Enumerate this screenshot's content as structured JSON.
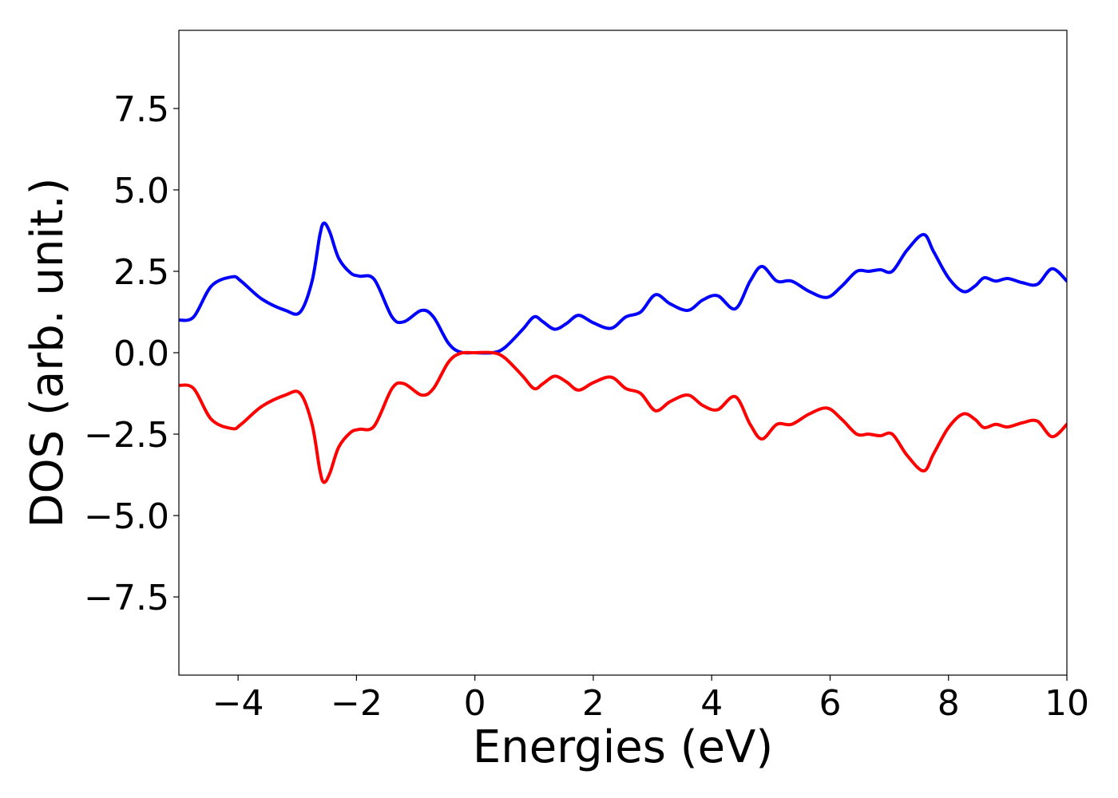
{
  "chart_data": {
    "type": "line",
    "title": "",
    "xlabel": "Energies (eV)",
    "ylabel": "DOS (arb. unit.)",
    "xlim": [
      -5,
      10
    ],
    "ylim": [
      -9.9,
      9.9
    ],
    "grid": false,
    "legend": "none",
    "x_ticks": [
      {
        "value": -4,
        "label": "−4"
      },
      {
        "value": -2,
        "label": "−2"
      },
      {
        "value": 0,
        "label": "0"
      },
      {
        "value": 2,
        "label": "2"
      },
      {
        "value": 4,
        "label": "4"
      },
      {
        "value": 6,
        "label": "6"
      },
      {
        "value": 8,
        "label": "8"
      },
      {
        "value": 10,
        "label": "10"
      }
    ],
    "y_ticks": [
      {
        "value": 7.5,
        "label": "7.5"
      },
      {
        "value": 5.0,
        "label": "5.0"
      },
      {
        "value": 2.5,
        "label": "2.5"
      },
      {
        "value": 0.0,
        "label": "0.0"
      },
      {
        "value": -2.5,
        "label": "−2.5"
      },
      {
        "value": -5.0,
        "label": "−5.0"
      },
      {
        "value": -7.5,
        "label": "−7.5"
      }
    ],
    "series": [
      {
        "color": "#0000ff",
        "points": [
          [
            -5.0,
            1.0
          ],
          [
            -4.75,
            1.1
          ],
          [
            -4.45,
            2.05
          ],
          [
            -4.1,
            2.33
          ],
          [
            -3.95,
            2.2
          ],
          [
            -3.6,
            1.65
          ],
          [
            -3.2,
            1.3
          ],
          [
            -2.95,
            1.25
          ],
          [
            -2.75,
            2.2
          ],
          [
            -2.62,
            3.6
          ],
          [
            -2.55,
            3.98
          ],
          [
            -2.45,
            3.7
          ],
          [
            -2.3,
            2.9
          ],
          [
            -2.1,
            2.45
          ],
          [
            -1.95,
            2.35
          ],
          [
            -1.7,
            2.25
          ],
          [
            -1.4,
            1.1
          ],
          [
            -1.2,
            0.95
          ],
          [
            -0.9,
            1.3
          ],
          [
            -0.7,
            1.1
          ],
          [
            -0.45,
            0.3
          ],
          [
            -0.25,
            0.02
          ],
          [
            0.0,
            0.0
          ],
          [
            0.3,
            0.0
          ],
          [
            0.5,
            0.15
          ],
          [
            0.8,
            0.7
          ],
          [
            1.0,
            1.1
          ],
          [
            1.15,
            0.95
          ],
          [
            1.35,
            0.72
          ],
          [
            1.55,
            0.9
          ],
          [
            1.75,
            1.15
          ],
          [
            2.0,
            0.92
          ],
          [
            2.3,
            0.75
          ],
          [
            2.55,
            1.1
          ],
          [
            2.8,
            1.25
          ],
          [
            3.05,
            1.78
          ],
          [
            3.3,
            1.5
          ],
          [
            3.6,
            1.3
          ],
          [
            3.85,
            1.62
          ],
          [
            4.1,
            1.75
          ],
          [
            4.4,
            1.35
          ],
          [
            4.65,
            2.2
          ],
          [
            4.85,
            2.65
          ],
          [
            5.1,
            2.2
          ],
          [
            5.35,
            2.2
          ],
          [
            5.65,
            1.88
          ],
          [
            5.95,
            1.7
          ],
          [
            6.2,
            2.05
          ],
          [
            6.45,
            2.5
          ],
          [
            6.65,
            2.5
          ],
          [
            6.85,
            2.55
          ],
          [
            7.05,
            2.5
          ],
          [
            7.3,
            3.15
          ],
          [
            7.58,
            3.63
          ],
          [
            7.75,
            3.1
          ],
          [
            8.0,
            2.3
          ],
          [
            8.25,
            1.88
          ],
          [
            8.45,
            2.05
          ],
          [
            8.6,
            2.3
          ],
          [
            8.8,
            2.2
          ],
          [
            9.0,
            2.28
          ],
          [
            9.25,
            2.15
          ],
          [
            9.5,
            2.1
          ],
          [
            9.75,
            2.58
          ],
          [
            10.0,
            2.2
          ]
        ]
      },
      {
        "color": "#ff0000",
        "points": [
          [
            -5.0,
            -1.0
          ],
          [
            -4.75,
            -1.1
          ],
          [
            -4.45,
            -2.05
          ],
          [
            -4.1,
            -2.33
          ],
          [
            -3.95,
            -2.2
          ],
          [
            -3.6,
            -1.65
          ],
          [
            -3.2,
            -1.3
          ],
          [
            -2.95,
            -1.25
          ],
          [
            -2.75,
            -2.2
          ],
          [
            -2.62,
            -3.6
          ],
          [
            -2.55,
            -3.98
          ],
          [
            -2.45,
            -3.7
          ],
          [
            -2.3,
            -2.9
          ],
          [
            -2.1,
            -2.45
          ],
          [
            -1.95,
            -2.35
          ],
          [
            -1.7,
            -2.25
          ],
          [
            -1.4,
            -1.1
          ],
          [
            -1.2,
            -0.95
          ],
          [
            -0.9,
            -1.3
          ],
          [
            -0.7,
            -1.1
          ],
          [
            -0.45,
            -0.3
          ],
          [
            -0.25,
            -0.02
          ],
          [
            0.0,
            0.0
          ],
          [
            0.3,
            0.0
          ],
          [
            0.5,
            -0.15
          ],
          [
            0.8,
            -0.7
          ],
          [
            1.0,
            -1.1
          ],
          [
            1.15,
            -0.95
          ],
          [
            1.35,
            -0.72
          ],
          [
            1.55,
            -0.9
          ],
          [
            1.75,
            -1.15
          ],
          [
            2.0,
            -0.92
          ],
          [
            2.3,
            -0.75
          ],
          [
            2.55,
            -1.1
          ],
          [
            2.8,
            -1.25
          ],
          [
            3.05,
            -1.78
          ],
          [
            3.3,
            -1.5
          ],
          [
            3.6,
            -1.3
          ],
          [
            3.85,
            -1.62
          ],
          [
            4.1,
            -1.75
          ],
          [
            4.4,
            -1.35
          ],
          [
            4.65,
            -2.2
          ],
          [
            4.85,
            -2.65
          ],
          [
            5.1,
            -2.2
          ],
          [
            5.35,
            -2.2
          ],
          [
            5.65,
            -1.88
          ],
          [
            5.95,
            -1.7
          ],
          [
            6.2,
            -2.05
          ],
          [
            6.45,
            -2.5
          ],
          [
            6.65,
            -2.5
          ],
          [
            6.85,
            -2.55
          ],
          [
            7.05,
            -2.5
          ],
          [
            7.3,
            -3.15
          ],
          [
            7.58,
            -3.63
          ],
          [
            7.75,
            -3.1
          ],
          [
            8.0,
            -2.3
          ],
          [
            8.25,
            -1.88
          ],
          [
            8.45,
            -2.05
          ],
          [
            8.6,
            -2.3
          ],
          [
            8.8,
            -2.2
          ],
          [
            9.0,
            -2.28
          ],
          [
            9.25,
            -2.15
          ],
          [
            9.5,
            -2.1
          ],
          [
            9.75,
            -2.58
          ],
          [
            10.0,
            -2.2
          ]
        ]
      }
    ]
  }
}
